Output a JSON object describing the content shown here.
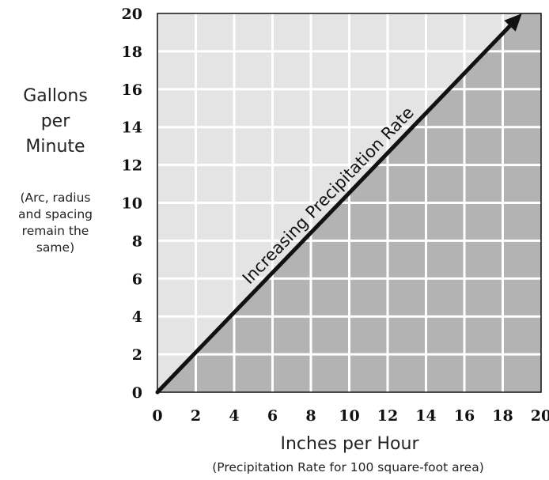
{
  "chart_data": {
    "type": "line",
    "title": "",
    "ylabel_lines": [
      "Gallons",
      "per",
      "Minute"
    ],
    "ylabel_note_lines": [
      "(Arc, radius",
      "and spacing",
      "remain the",
      "same)"
    ],
    "xlabel": "Inches per Hour",
    "xlabel_note": "(Precipitation Rate for 100 square-foot area)",
    "xlim": [
      0,
      20
    ],
    "ylim": [
      0,
      20
    ],
    "xticks": [
      0,
      2,
      4,
      6,
      8,
      10,
      12,
      14,
      16,
      18,
      20
    ],
    "yticks": [
      0,
      2,
      4,
      6,
      8,
      10,
      12,
      14,
      16,
      18,
      20
    ],
    "grid": true,
    "series": [
      {
        "x": [
          0,
          19
        ],
        "y": [
          0,
          20
        ]
      }
    ],
    "annotation": "Increasing Precipitation Rate",
    "colors": {
      "upper_region": "#e4e4e4",
      "lower_region": "#b3b3b3",
      "grid": "#ffffff",
      "arrow": "#111111"
    }
  }
}
